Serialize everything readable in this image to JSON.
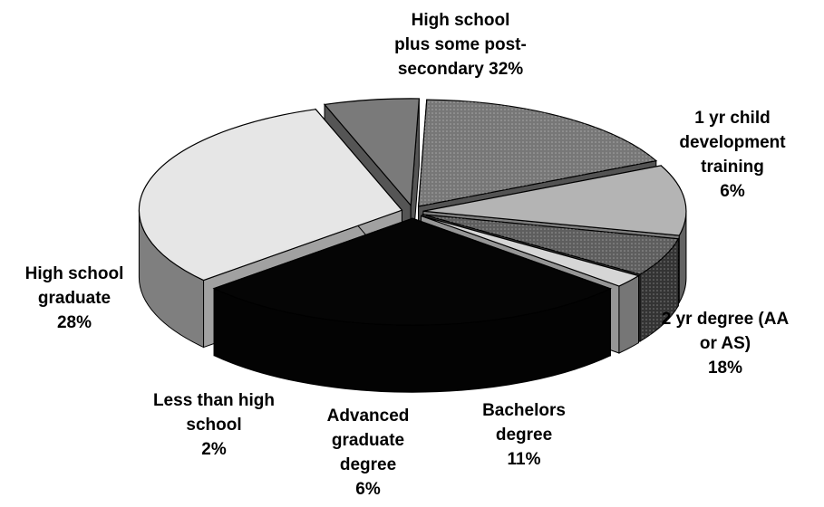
{
  "chart_data": {
    "type": "pie",
    "three_d": true,
    "exploded": true,
    "title": "",
    "legend": "none",
    "slices": [
      {
        "label": "High school plus some post-secondary",
        "label_lines": [
          "High school",
          "plus some post-",
          "secondary 32%"
        ],
        "value": 32,
        "color": "#e6e6e6"
      },
      {
        "label": "1 yr child development training",
        "label_lines": [
          "1 yr child",
          "development",
          "training",
          "6%"
        ],
        "value": 6,
        "color": "#7a7a7a"
      },
      {
        "label": "2 yr degree (AA or AS)",
        "label_lines": [
          "2 yr degree (AA",
          "or AS)",
          "18%"
        ],
        "value": 18,
        "color": "#777777",
        "pattern": true
      },
      {
        "label": "Bachelors degree",
        "label_lines": [
          "Bachelors",
          "degree",
          "11%"
        ],
        "value": 11,
        "color": "#b4b4b4"
      },
      {
        "label": "Advanced graduate degree",
        "label_lines": [
          "Advanced",
          "graduate",
          "degree",
          "6%"
        ],
        "value": 6,
        "color": "#5e5e5e",
        "pattern": true
      },
      {
        "label": "Less than high school",
        "label_lines": [
          "Less than high",
          "school",
          "2%"
        ],
        "value": 2,
        "color": "#d6d6d6"
      },
      {
        "label": "High school graduate",
        "label_lines": [
          "High school",
          "graduate",
          "28%"
        ],
        "value": 28,
        "color": "#050505"
      }
    ]
  }
}
